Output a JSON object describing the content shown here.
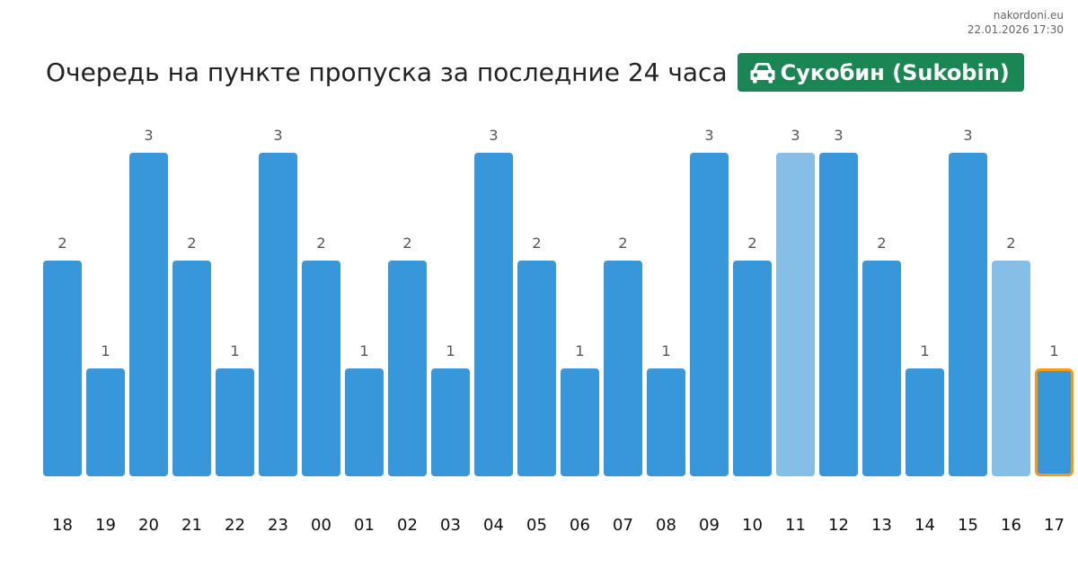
{
  "site": {
    "name": "nakordoni.eu",
    "timestamp": "22.01.2026 17:30"
  },
  "header": {
    "title": "Очередь на пункте пропуска за последние 24 часа",
    "badge_label": "Сукобин (Sukobin)",
    "badge_icon": "car-icon",
    "badge_color": "#1a8654"
  },
  "chart_data": {
    "type": "bar",
    "categories": [
      "18",
      "19",
      "20",
      "21",
      "22",
      "23",
      "00",
      "01",
      "02",
      "03",
      "04",
      "05",
      "06",
      "07",
      "08",
      "09",
      "10",
      "11",
      "12",
      "13",
      "14",
      "15",
      "16",
      "17"
    ],
    "values": [
      2,
      1,
      3,
      2,
      1,
      3,
      2,
      1,
      2,
      1,
      3,
      2,
      1,
      2,
      1,
      3,
      2,
      3,
      3,
      2,
      1,
      3,
      2,
      1
    ],
    "data_labels": [
      "2",
      "1",
      "3",
      "2",
      "1",
      "3",
      "2",
      "1",
      "2",
      "1",
      "3",
      "2",
      "1",
      "2",
      "1",
      "3",
      "2",
      "3",
      "3",
      "2",
      "1",
      "3",
      "2",
      "1"
    ],
    "ylim": [
      0,
      3
    ],
    "grid": false,
    "colors": {
      "bar": "#3897db",
      "bar_light": "#85bfe8",
      "current_outline": "#f39c12"
    },
    "light_bars": [
      "11",
      "16"
    ],
    "highlighted": "17"
  }
}
